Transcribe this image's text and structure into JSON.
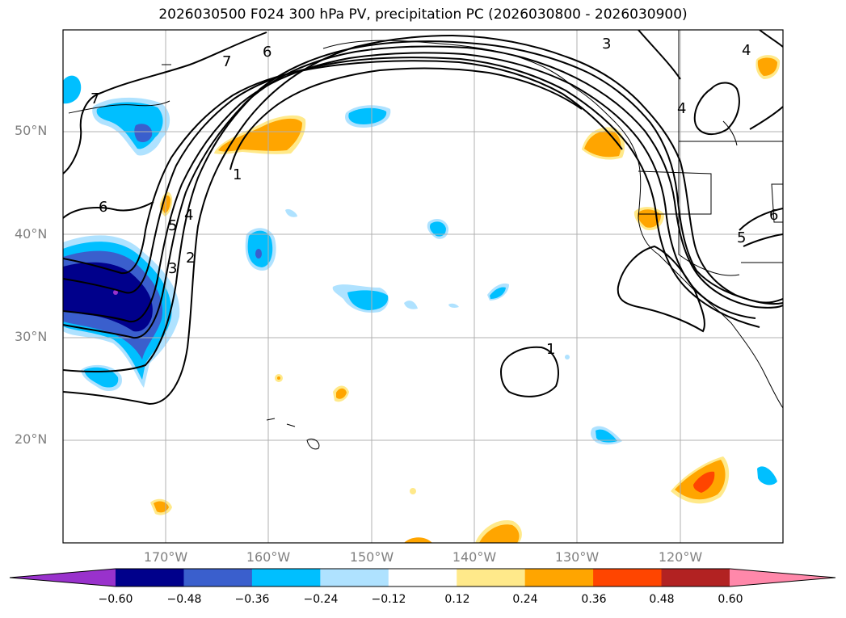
{
  "title": "2026030500 F024 300 hPa PV, precipitation PC (2026030800 - 2026030900)",
  "lat_labels": [
    "50°N",
    "40°N",
    "30°N",
    "20°N"
  ],
  "lon_labels": [
    "170°W",
    "160°W",
    "150°W",
    "140°W",
    "130°W",
    "120°W"
  ],
  "colorbar": {
    "ticks": [
      "−0.60",
      "−0.48",
      "−0.36",
      "−0.24",
      "−0.12",
      "0.12",
      "0.24",
      "0.36",
      "0.48",
      "0.60"
    ],
    "colors": [
      "#9932cc",
      "#00008b",
      "#3a5fcd",
      "#00bfff",
      "#afe2ff",
      "#ffffff",
      "#ffe98a",
      "#ffa500",
      "#ff4500",
      "#b22222",
      "#ff88aa"
    ]
  },
  "contour_labels": [
    "7",
    "6",
    "7",
    "6",
    "1",
    "5",
    "4",
    "3",
    "2",
    "3",
    "4",
    "4",
    "5",
    "6",
    "1"
  ]
}
